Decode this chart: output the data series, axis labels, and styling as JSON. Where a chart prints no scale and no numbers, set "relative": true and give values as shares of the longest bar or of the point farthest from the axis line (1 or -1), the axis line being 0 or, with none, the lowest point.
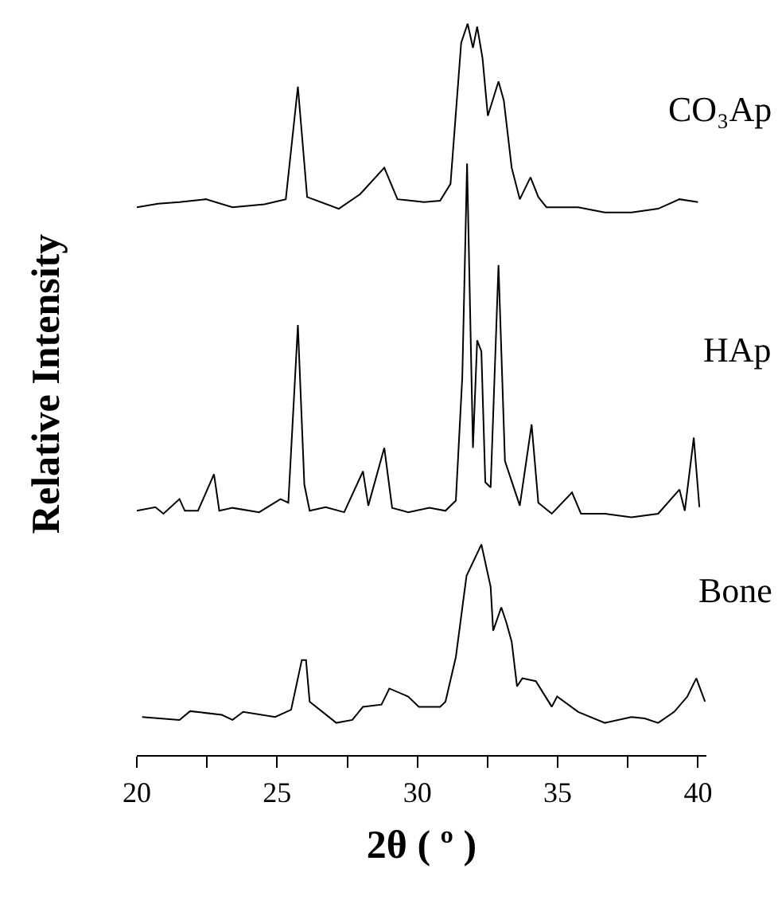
{
  "chart_data": {
    "type": "line",
    "relative": true,
    "xlabel": "2θ ( º )",
    "ylabel": "Relative Intensity",
    "xlim": [
      20,
      40.3
    ],
    "xticks": [
      20,
      {
        "value": 22.5,
        "label": null
      },
      25,
      {
        "value": 27.5,
        "label": null
      },
      30,
      {
        "value": 32.5,
        "label": null
      },
      35,
      {
        "value": 37.5,
        "label": null
      },
      40
    ],
    "legend": false,
    "grid": false,
    "series": [
      {
        "name": "CO₃Ap",
        "color": "#000000",
        "x": [
          20.0,
          20.76,
          21.52,
          22.46,
          23.41,
          24.55,
          25.31,
          25.74,
          26.07,
          27.2,
          27.96,
          28.82,
          29.29,
          30.24,
          30.81,
          31.18,
          31.56,
          31.79,
          31.98,
          32.13,
          32.32,
          32.51,
          32.89,
          33.08,
          33.36,
          33.65,
          34.03,
          34.31,
          34.6,
          35.73,
          36.68,
          37.63,
          38.58,
          39.34,
          40.0
        ],
        "values": [
          0.749,
          0.754,
          0.756,
          0.76,
          0.749,
          0.753,
          0.76,
          0.914,
          0.763,
          0.747,
          0.767,
          0.803,
          0.76,
          0.756,
          0.758,
          0.781,
          0.974,
          1,
          0.967,
          0.996,
          0.953,
          0.874,
          0.921,
          0.895,
          0.803,
          0.76,
          0.79,
          0.763,
          0.749,
          0.749,
          0.742,
          0.742,
          0.747,
          0.76,
          0.756
        ]
      },
      {
        "name": "HAp",
        "color": "#000000",
        "x": [
          20.0,
          20.66,
          20.95,
          21.52,
          21.71,
          22.18,
          22.75,
          22.94,
          23.41,
          24.36,
          25.12,
          25.4,
          25.74,
          25.97,
          26.16,
          26.73,
          27.39,
          28.06,
          28.25,
          28.82,
          29.1,
          29.67,
          30.43,
          31.0,
          31.37,
          31.6,
          31.77,
          31.98,
          32.13,
          32.28,
          32.42,
          32.61,
          32.89,
          33.12,
          33.65,
          34.07,
          34.31,
          34.79,
          35.51,
          35.83,
          36.68,
          37.63,
          38.58,
          39.34,
          39.53,
          39.85,
          40.05
        ],
        "values": [
          0.334,
          0.339,
          0.33,
          0.35,
          0.334,
          0.334,
          0.384,
          0.334,
          0.338,
          0.332,
          0.35,
          0.345,
          0.588,
          0.37,
          0.334,
          0.339,
          0.332,
          0.388,
          0.341,
          0.42,
          0.338,
          0.332,
          0.338,
          0.334,
          0.348,
          0.517,
          0.809,
          0.42,
          0.567,
          0.552,
          0.373,
          0.366,
          0.67,
          0.402,
          0.341,
          0.452,
          0.345,
          0.33,
          0.359,
          0.33,
          0.33,
          0.325,
          0.33,
          0.363,
          0.334,
          0.434,
          0.339
        ]
      },
      {
        "name": "Bone",
        "color": "#000000",
        "x": [
          20.19,
          21.52,
          21.9,
          23.03,
          23.41,
          23.79,
          24.93,
          25.5,
          25.88,
          26.03,
          26.16,
          27.11,
          27.68,
          28.06,
          28.72,
          29.0,
          29.67,
          30.05,
          30.81,
          31.0,
          31.37,
          31.75,
          32.28,
          32.61,
          32.7,
          32.99,
          33.18,
          33.36,
          33.55,
          33.74,
          34.22,
          34.79,
          34.98,
          35.73,
          36.68,
          37.63,
          38.1,
          38.58,
          39.15,
          39.62,
          39.94,
          40.25
        ],
        "values": [
          0.052,
          0.048,
          0.06,
          0.055,
          0.048,
          0.059,
          0.052,
          0.062,
          0.13,
          0.13,
          0.073,
          0.044,
          0.048,
          0.066,
          0.069,
          0.091,
          0.08,
          0.066,
          0.066,
          0.073,
          0.134,
          0.245,
          0.288,
          0.23,
          0.17,
          0.202,
          0.18,
          0.155,
          0.094,
          0.105,
          0.101,
          0.066,
          0.08,
          0.059,
          0.044,
          0.052,
          0.05,
          0.044,
          0.059,
          0.08,
          0.105,
          0.073
        ]
      }
    ]
  }
}
